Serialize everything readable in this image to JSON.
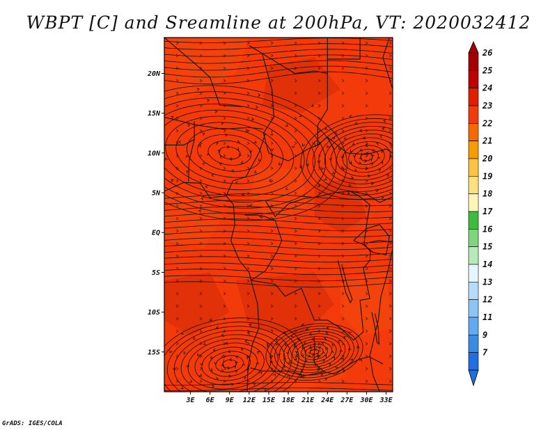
{
  "title": "WBPT [C] and Sreamline at 200hPa, VT: 2020032412",
  "credit": "GrADS: IGES/COLA",
  "map": {
    "lat_range": [
      -20,
      24.5
    ],
    "lon_range": [
      -1,
      34
    ],
    "lat_ticks": [
      {
        "value": 20,
        "label": "20N"
      },
      {
        "value": 15,
        "label": "15N"
      },
      {
        "value": 10,
        "label": "10N"
      },
      {
        "value": 5,
        "label": "5N"
      },
      {
        "value": 0,
        "label": "EQ"
      },
      {
        "value": -5,
        "label": "5S"
      },
      {
        "value": -10,
        "label": "10S"
      },
      {
        "value": -15,
        "label": "15S"
      }
    ],
    "lon_ticks": [
      {
        "value": 3,
        "label": "3E"
      },
      {
        "value": 6,
        "label": "6E"
      },
      {
        "value": 9,
        "label": "9E"
      },
      {
        "value": 12,
        "label": "12E"
      },
      {
        "value": 15,
        "label": "15E"
      },
      {
        "value": 18,
        "label": "18E"
      },
      {
        "value": 21,
        "label": "21E"
      },
      {
        "value": 24,
        "label": "24E"
      },
      {
        "value": 27,
        "label": "27E"
      },
      {
        "value": 30,
        "label": "30E"
      },
      {
        "value": 33,
        "label": "33E"
      }
    ],
    "field_colors": {
      "base": "#f23a0a",
      "dark": "#d42a08",
      "light": "#f44a10"
    },
    "gyres": [
      {
        "name": "north-anticyclone",
        "lon": 9,
        "lat": 10,
        "rotation": "clockwise"
      },
      {
        "name": "eastern-vortex",
        "lon": 30,
        "lat": 9.5,
        "rotation": "counterclockwise"
      },
      {
        "name": "southern-vortex",
        "lon": 9,
        "lat": -16.5,
        "rotation": "counterclockwise"
      },
      {
        "name": "southeast-vortex",
        "lon": 22,
        "lat": -15,
        "rotation": "counterclockwise"
      }
    ]
  },
  "colorbar": {
    "levels": [
      {
        "label": "26",
        "color": "#a50000"
      },
      {
        "label": "25",
        "color": "#c00000"
      },
      {
        "label": "24",
        "color": "#e01e00"
      },
      {
        "label": "23",
        "color": "#f23a0a"
      },
      {
        "label": "22",
        "color": "#f56a00"
      },
      {
        "label": "21",
        "color": "#f79b00"
      },
      {
        "label": "20",
        "color": "#fbc341"
      },
      {
        "label": "19",
        "color": "#fde080"
      },
      {
        "label": "18",
        "color": "#fff5b8"
      },
      {
        "label": "17",
        "color": "#3fbb3f"
      },
      {
        "label": "16",
        "color": "#7ed57e"
      },
      {
        "label": "15",
        "color": "#b6eab6"
      },
      {
        "label": "14",
        "color": "#e6f6ff"
      },
      {
        "label": "13",
        "color": "#b4dcfa"
      },
      {
        "label": "12",
        "color": "#8cc5f5"
      },
      {
        "label": "11",
        "color": "#64aaf0"
      },
      {
        "label": "9",
        "color": "#3a8be6"
      },
      {
        "label": "7",
        "color": "#1f6fe0"
      }
    ],
    "bottom_color": "#1f6fe0"
  }
}
